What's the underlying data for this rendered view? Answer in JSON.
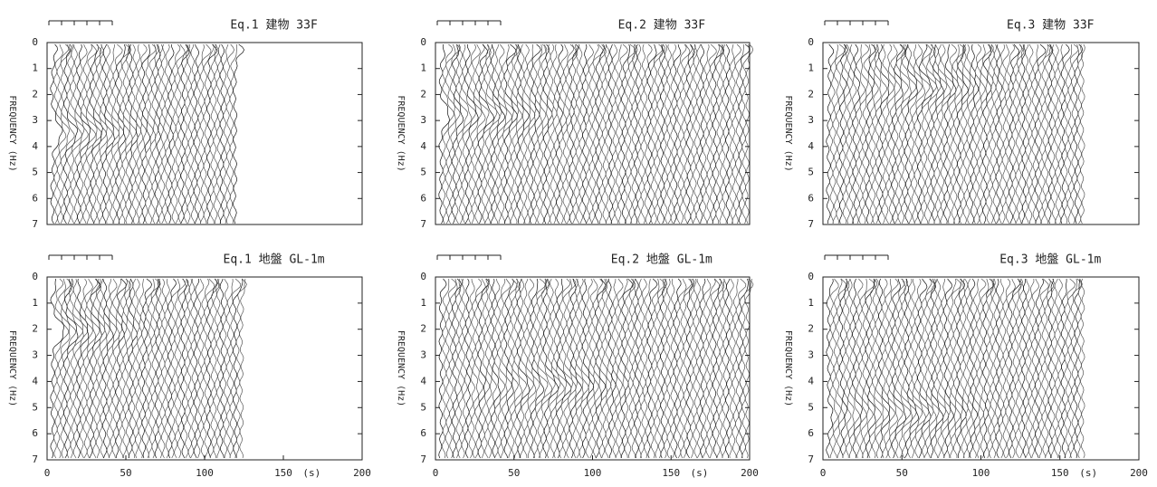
{
  "chart_data": [
    {
      "type": "line",
      "title": "Eq.1 建物 33F",
      "ylabel": "FREQUENCY (Hz)",
      "xlim": [
        0,
        200
      ],
      "ylim": [
        7,
        0
      ],
      "yticks": [
        0,
        1,
        2,
        3,
        4,
        5,
        6,
        7
      ]
    },
    {
      "type": "line",
      "title": "Eq.2 建物 33F",
      "ylabel": "FREQUENCY (Hz)",
      "xlim": [
        0,
        200
      ],
      "ylim": [
        7,
        0
      ],
      "yticks": [
        0,
        1,
        2,
        3,
        4,
        5,
        6,
        7
      ]
    },
    {
      "type": "line",
      "title": "Eq.3 建物 33F",
      "ylabel": "FREQUENCY (Hz)",
      "xlim": [
        0,
        200
      ],
      "ylim": [
        7,
        0
      ],
      "yticks": [
        0,
        1,
        2,
        3,
        4,
        5,
        6,
        7
      ]
    },
    {
      "type": "line",
      "title": "Eq.1 地盤 GL-1m",
      "ylabel": "FREQUENCY (Hz)",
      "xlabel": "(s)",
      "xlim": [
        0,
        200
      ],
      "ylim": [
        7,
        0
      ],
      "yticks": [
        0,
        1,
        2,
        3,
        4,
        5,
        6,
        7
      ],
      "xticks": [
        0,
        50,
        100,
        150,
        200
      ]
    },
    {
      "type": "line",
      "title": "Eq.2 地盤 GL-1m",
      "ylabel": "FREQUENCY (Hz)",
      "xlabel": "(s)",
      "xlim": [
        0,
        200
      ],
      "ylim": [
        7,
        0
      ],
      "yticks": [
        0,
        1,
        2,
        3,
        4,
        5,
        6,
        7
      ],
      "xticks": [
        0,
        50,
        100,
        150,
        200
      ]
    },
    {
      "type": "line",
      "title": "Eq.3 地盤 GL-1m",
      "ylabel": "FREQUENCY (Hz)",
      "xlabel": "(s)",
      "xlim": [
        0,
        200
      ],
      "ylim": [
        7,
        0
      ],
      "yticks": [
        0,
        1,
        2,
        3,
        4,
        5,
        6,
        7
      ],
      "xticks": [
        0,
        50,
        100,
        150,
        200
      ]
    }
  ]
}
